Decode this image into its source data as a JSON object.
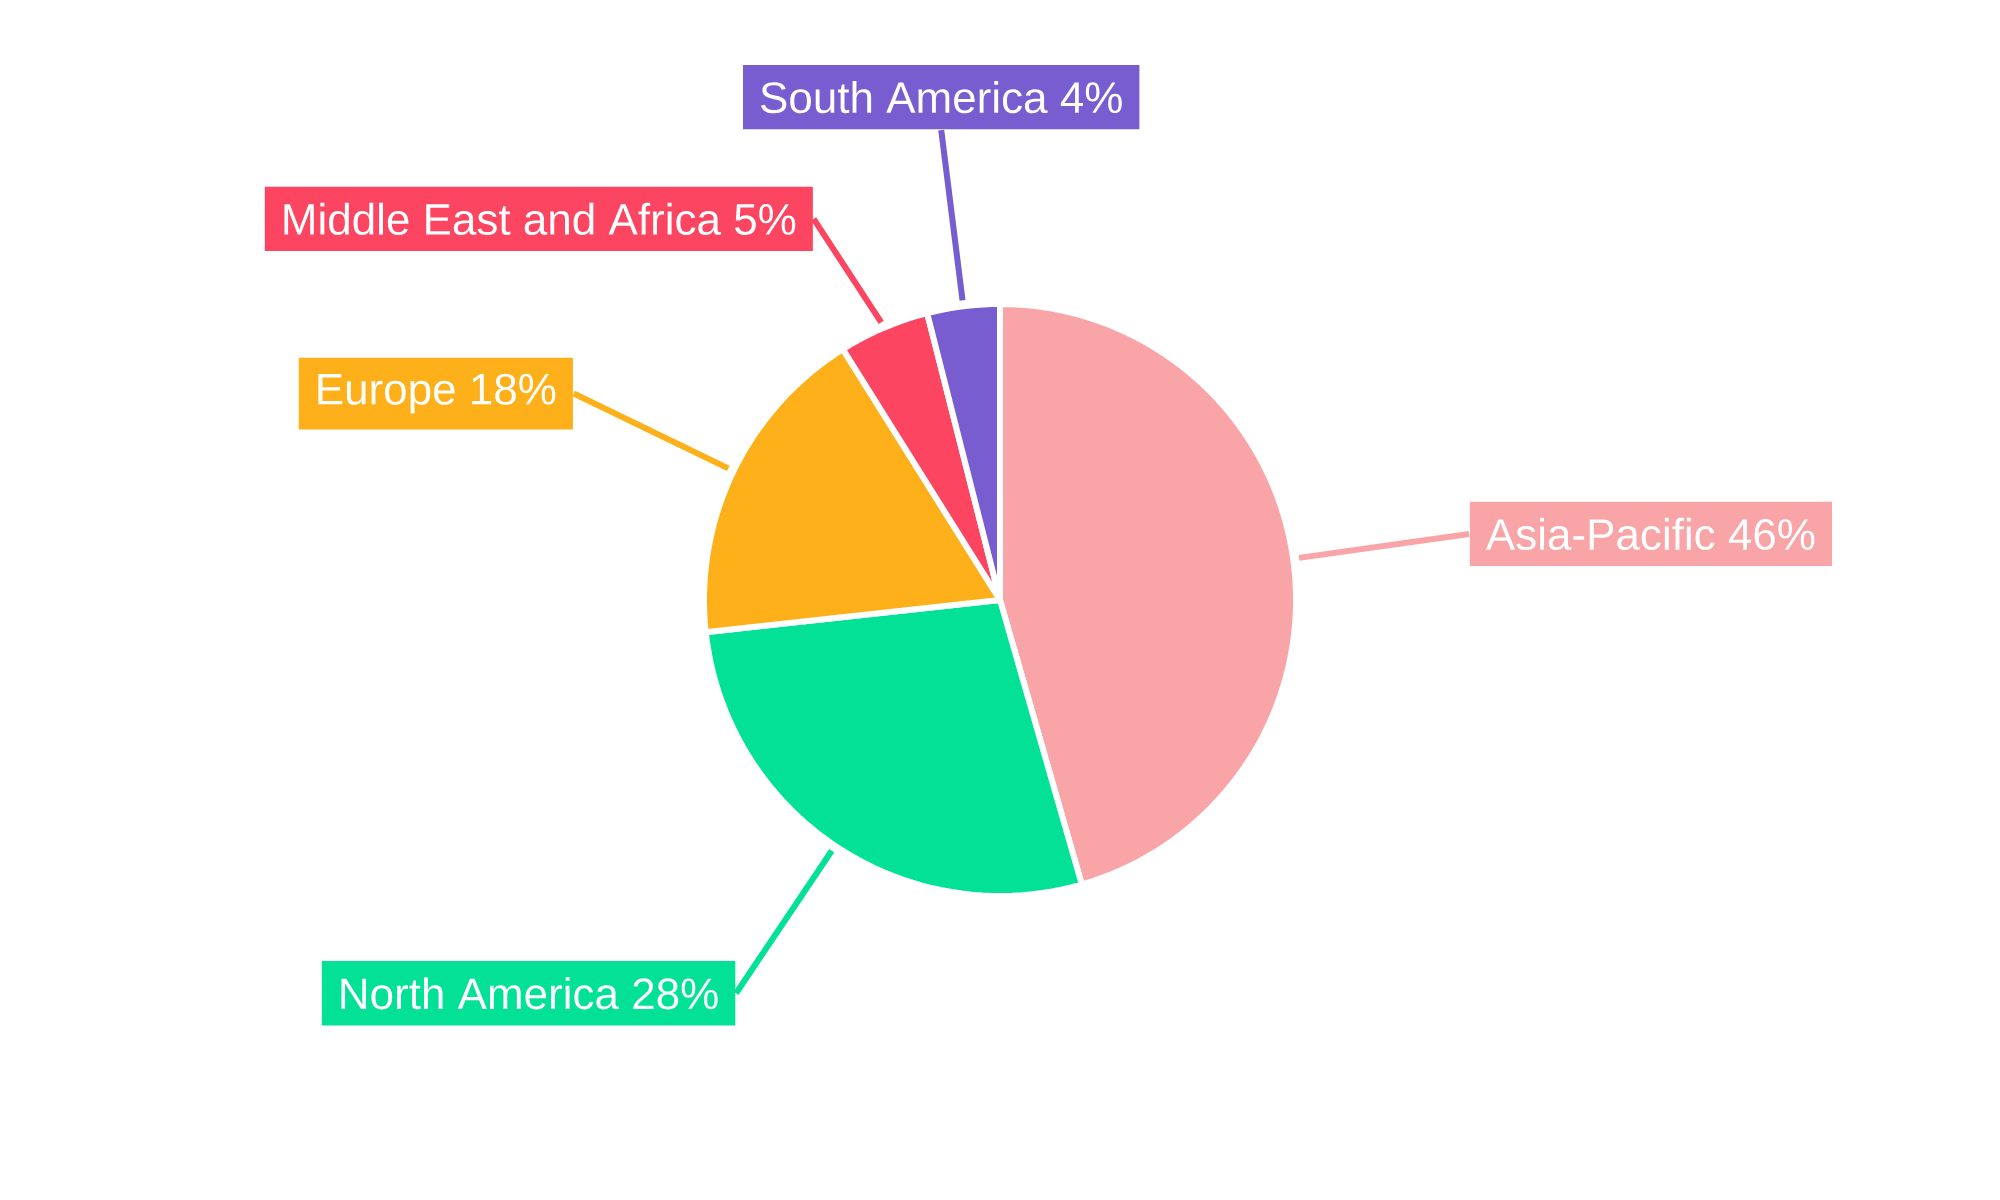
{
  "chart_data": {
    "type": "pie",
    "categories": [
      "Asia-Pacific",
      "North America",
      "Europe",
      "Middle East and Africa",
      "South America"
    ],
    "values": [
      46,
      28,
      18,
      5,
      4
    ],
    "value_labels": [
      "46%",
      "28%",
      "18%",
      "5%",
      "4%"
    ],
    "colors": [
      "#f9a5a7",
      "#02e195",
      "#fdb01a",
      "#fc4560",
      "#775dd0"
    ]
  }
}
